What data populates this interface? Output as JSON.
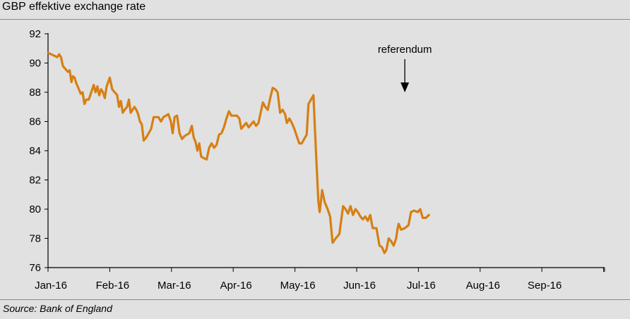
{
  "chart_data": {
    "type": "line",
    "title": "GBP effektive exchange rate",
    "source": "Source: Bank of England",
    "ylim": [
      76,
      92
    ],
    "yticks": [
      76,
      78,
      80,
      82,
      84,
      86,
      88,
      90,
      92
    ],
    "xticks": [
      "Jan-16",
      "Feb-16",
      "Mar-16",
      "Apr-16",
      "May-16",
      "Jun-16",
      "Jul-16",
      "Aug-16",
      "Sep-16"
    ],
    "grid": false,
    "line_color": "#d67f14",
    "annotation": {
      "text": "referendum",
      "x": 5.78,
      "y": 87.8
    },
    "series": [
      {
        "points": [
          [
            0.0,
            90.7
          ],
          [
            0.05,
            90.6
          ],
          [
            0.1,
            90.5
          ],
          [
            0.15,
            90.4
          ],
          [
            0.18,
            90.6
          ],
          [
            0.21,
            90.4
          ],
          [
            0.24,
            89.8
          ],
          [
            0.28,
            89.6
          ],
          [
            0.32,
            89.4
          ],
          [
            0.35,
            89.5
          ],
          [
            0.38,
            88.7
          ],
          [
            0.4,
            89.1
          ],
          [
            0.43,
            89.0
          ],
          [
            0.46,
            88.6
          ],
          [
            0.5,
            88.2
          ],
          [
            0.53,
            87.9
          ],
          [
            0.56,
            88.0
          ],
          [
            0.59,
            87.2
          ],
          [
            0.62,
            87.5
          ],
          [
            0.66,
            87.5
          ],
          [
            0.7,
            88.0
          ],
          [
            0.74,
            88.5
          ],
          [
            0.77,
            88.0
          ],
          [
            0.8,
            88.4
          ],
          [
            0.83,
            87.8
          ],
          [
            0.86,
            88.2
          ],
          [
            0.89,
            88.0
          ],
          [
            0.92,
            87.6
          ],
          [
            0.95,
            88.4
          ],
          [
            1.0,
            89.0
          ],
          [
            1.04,
            88.2
          ],
          [
            1.08,
            88.0
          ],
          [
            1.12,
            87.8
          ],
          [
            1.15,
            87.0
          ],
          [
            1.18,
            87.4
          ],
          [
            1.21,
            86.6
          ],
          [
            1.24,
            86.8
          ],
          [
            1.28,
            87.0
          ],
          [
            1.31,
            87.5
          ],
          [
            1.34,
            86.6
          ],
          [
            1.37,
            86.8
          ],
          [
            1.4,
            87.0
          ],
          [
            1.43,
            86.8
          ],
          [
            1.46,
            86.5
          ],
          [
            1.49,
            86.0
          ],
          [
            1.52,
            85.8
          ],
          [
            1.55,
            84.7
          ],
          [
            1.59,
            84.9
          ],
          [
            1.63,
            85.2
          ],
          [
            1.67,
            85.5
          ],
          [
            1.71,
            86.3
          ],
          [
            1.75,
            86.3
          ],
          [
            1.79,
            86.3
          ],
          [
            1.83,
            86.0
          ],
          [
            1.87,
            86.3
          ],
          [
            1.91,
            86.4
          ],
          [
            1.95,
            86.5
          ],
          [
            1.99,
            86.0
          ],
          [
            2.02,
            85.2
          ],
          [
            2.05,
            86.3
          ],
          [
            2.09,
            86.4
          ],
          [
            2.13,
            85.2
          ],
          [
            2.17,
            84.8
          ],
          [
            2.21,
            85.0
          ],
          [
            2.25,
            85.1
          ],
          [
            2.29,
            85.2
          ],
          [
            2.33,
            85.7
          ],
          [
            2.36,
            84.9
          ],
          [
            2.39,
            84.6
          ],
          [
            2.42,
            84.0
          ],
          [
            2.45,
            84.5
          ],
          [
            2.48,
            83.6
          ],
          [
            2.52,
            83.5
          ],
          [
            2.57,
            83.4
          ],
          [
            2.61,
            84.2
          ],
          [
            2.65,
            84.5
          ],
          [
            2.69,
            84.2
          ],
          [
            2.73,
            84.4
          ],
          [
            2.77,
            85.1
          ],
          [
            2.81,
            85.2
          ],
          [
            2.85,
            85.6
          ],
          [
            2.89,
            86.2
          ],
          [
            2.93,
            86.7
          ],
          [
            2.97,
            86.4
          ],
          [
            3.02,
            86.4
          ],
          [
            3.06,
            86.4
          ],
          [
            3.1,
            86.2
          ],
          [
            3.13,
            85.5
          ],
          [
            3.17,
            85.7
          ],
          [
            3.21,
            85.9
          ],
          [
            3.25,
            85.6
          ],
          [
            3.29,
            85.8
          ],
          [
            3.33,
            86.0
          ],
          [
            3.37,
            85.7
          ],
          [
            3.41,
            85.9
          ],
          [
            3.45,
            86.7
          ],
          [
            3.48,
            87.3
          ],
          [
            3.52,
            87.0
          ],
          [
            3.56,
            86.8
          ],
          [
            3.6,
            87.6
          ],
          [
            3.64,
            88.3
          ],
          [
            3.68,
            88.2
          ],
          [
            3.72,
            88.0
          ],
          [
            3.76,
            86.6
          ],
          [
            3.8,
            86.8
          ],
          [
            3.84,
            86.5
          ],
          [
            3.87,
            85.9
          ],
          [
            3.91,
            86.2
          ],
          [
            3.95,
            85.9
          ],
          [
            3.99,
            85.5
          ],
          [
            4.03,
            85.0
          ],
          [
            4.07,
            84.5
          ],
          [
            4.11,
            84.5
          ],
          [
            4.15,
            84.8
          ],
          [
            4.19,
            85.1
          ],
          [
            4.22,
            87.2
          ],
          [
            4.26,
            87.5
          ],
          [
            4.3,
            87.8
          ],
          [
            4.34,
            84.0
          ],
          [
            4.38,
            80.5
          ],
          [
            4.4,
            79.8
          ],
          [
            4.44,
            81.3
          ],
          [
            4.48,
            80.5
          ],
          [
            4.53,
            80.0
          ],
          [
            4.57,
            79.5
          ],
          [
            4.61,
            77.7
          ],
          [
            4.66,
            78.0
          ],
          [
            4.72,
            78.3
          ],
          [
            4.78,
            80.2
          ],
          [
            4.82,
            80.0
          ],
          [
            4.86,
            79.7
          ],
          [
            4.9,
            80.2
          ],
          [
            4.94,
            79.6
          ],
          [
            4.98,
            80.0
          ],
          [
            5.02,
            79.8
          ],
          [
            5.06,
            79.5
          ],
          [
            5.1,
            79.3
          ],
          [
            5.14,
            79.5
          ],
          [
            5.18,
            79.2
          ],
          [
            5.22,
            79.6
          ],
          [
            5.26,
            78.7
          ],
          [
            5.32,
            78.7
          ],
          [
            5.37,
            77.5
          ],
          [
            5.41,
            77.4
          ],
          [
            5.45,
            77.0
          ],
          [
            5.48,
            77.2
          ],
          [
            5.52,
            78.0
          ],
          [
            5.56,
            77.8
          ],
          [
            5.6,
            77.5
          ],
          [
            5.64,
            78.0
          ],
          [
            5.66,
            78.6
          ],
          [
            5.68,
            79.0
          ],
          [
            5.72,
            78.6
          ],
          [
            5.78,
            78.7
          ],
          [
            5.84,
            78.9
          ],
          [
            5.88,
            79.8
          ],
          [
            5.93,
            79.9
          ],
          [
            5.99,
            79.8
          ],
          [
            6.03,
            80.0
          ],
          [
            6.07,
            79.4
          ],
          [
            6.12,
            79.4
          ],
          [
            6.17,
            79.6
          ]
        ]
      }
    ]
  }
}
